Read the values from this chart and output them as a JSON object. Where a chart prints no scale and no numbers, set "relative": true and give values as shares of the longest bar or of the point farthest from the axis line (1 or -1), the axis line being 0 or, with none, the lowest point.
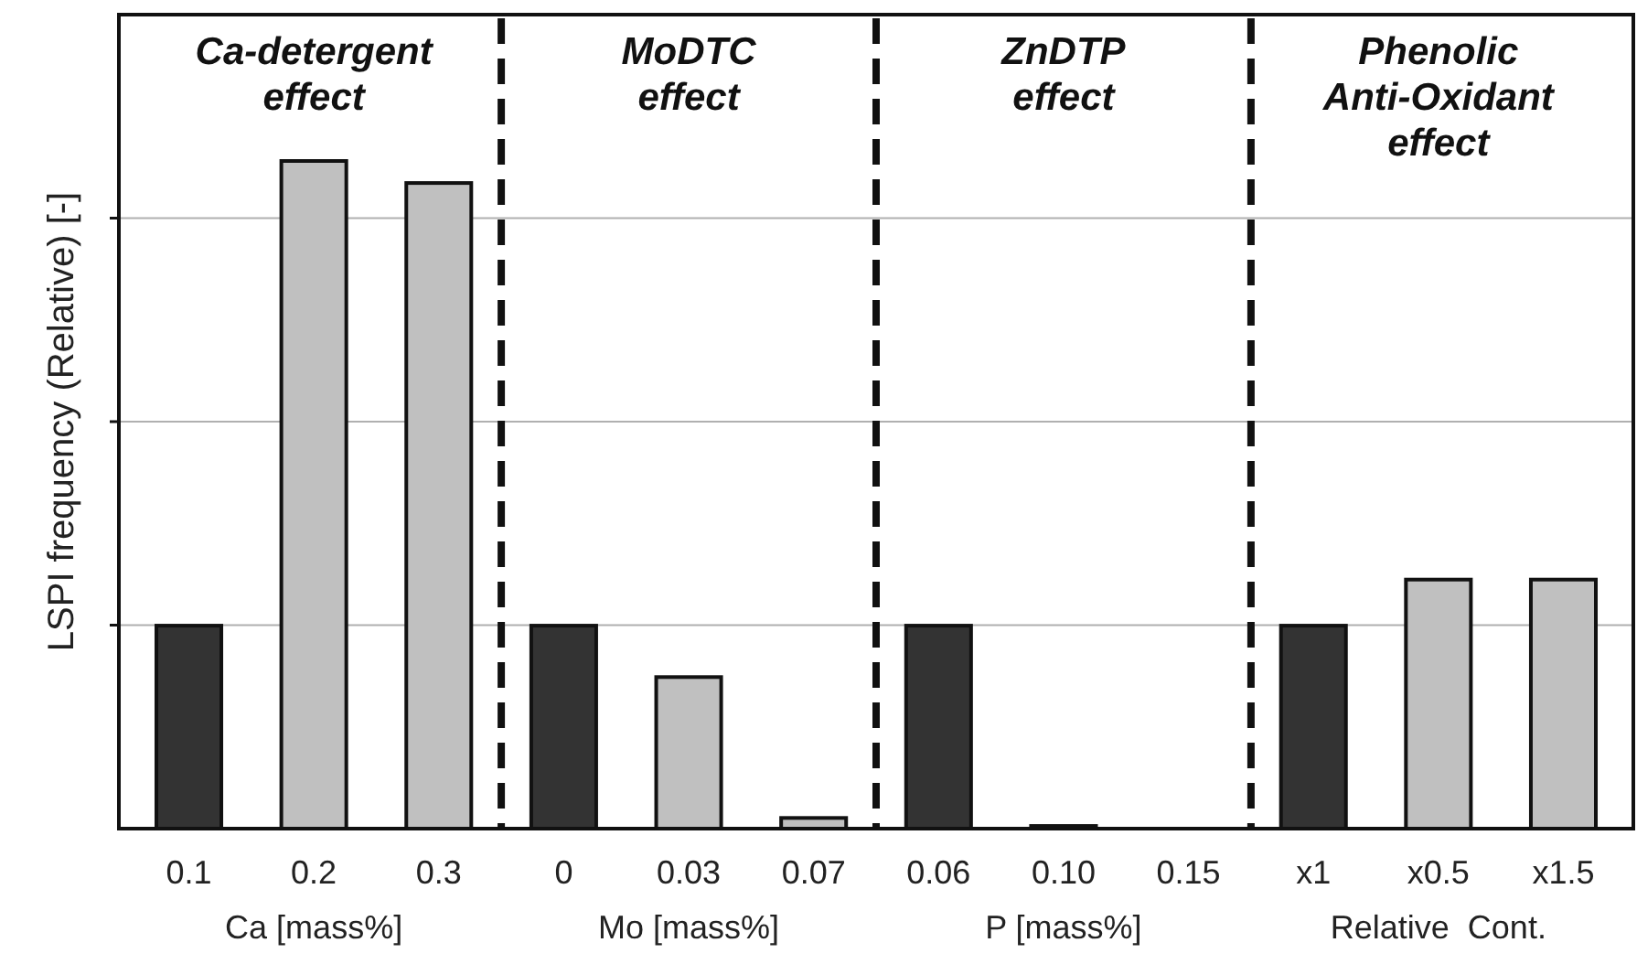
{
  "chart_data": {
    "type": "bar",
    "relative": true,
    "ylabel": "LSPI frequency (Relative) [-]",
    "grid": "y",
    "categories": [
      "0.1",
      "0.2",
      "0.3",
      "0",
      "0.03",
      "0.07",
      "0.06",
      "0.10",
      "0.15",
      "x1",
      "x0.5",
      "x1.5"
    ],
    "values": [
      0.304,
      1,
      0.967,
      0.304,
      0.227,
      0.016,
      0.304,
      0.004,
      0,
      0.304,
      0.373,
      0.373
    ],
    "colors": [
      "#333333",
      "#c0c0c0",
      "#c0c0c0",
      "#333333",
      "#c0c0c0",
      "#c0c0c0",
      "#333333",
      "#c0c0c0",
      "#c0c0c0",
      "#333333",
      "#c0c0c0",
      "#c0c0c0"
    ],
    "annotations": [
      "Ca-detergent\neffect",
      "MoDTC\neffect",
      "ZnDTP\neffect",
      "Phenolic\nAnti-Oxidant\neffect",
      "Ca [mass%]",
      "Mo [mass%]",
      "P [mass%]",
      "Relative  Cont."
    ]
  }
}
